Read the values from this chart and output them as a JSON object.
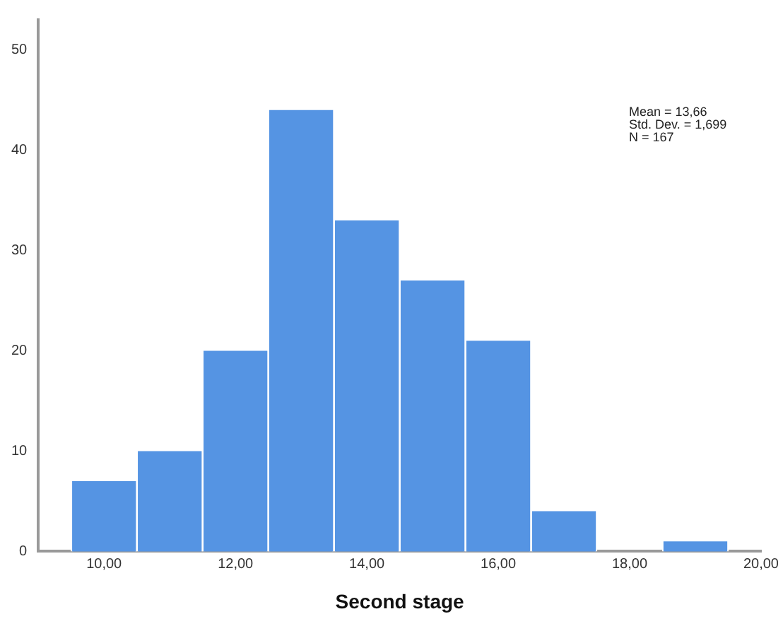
{
  "chart_data": {
    "type": "histogram",
    "xlabel": "Second stage",
    "bins": [
      9.5,
      10.5,
      11.5,
      12.5,
      13.5,
      14.5,
      15.5,
      16.5,
      17.5,
      18.5,
      19.5
    ],
    "values": [
      7,
      10,
      20,
      44,
      33,
      27,
      21,
      4,
      0,
      1
    ],
    "color": "#5594e3",
    "xlim": [
      9,
      20
    ],
    "xticks": [
      {
        "value": 10,
        "label": "10,00"
      },
      {
        "value": 12,
        "label": "12,00"
      },
      {
        "value": 14,
        "label": "14,00"
      },
      {
        "value": 16,
        "label": "16,00"
      },
      {
        "value": 18,
        "label": "18,00"
      },
      {
        "value": 20,
        "label": "20,00"
      }
    ],
    "ylim": [
      0,
      53
    ],
    "yticks": [
      0,
      10,
      20,
      30,
      40,
      50
    ],
    "annotations": [
      "Mean = 13,66",
      "Std. Dev. = 1,699",
      "N = 167"
    ],
    "grid": false,
    "legend": false
  }
}
